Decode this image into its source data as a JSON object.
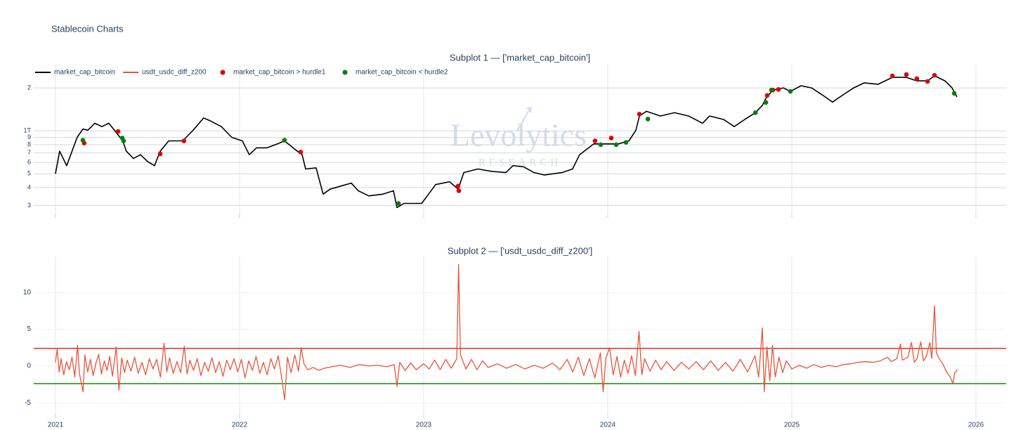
{
  "title": "Stablecoin Charts",
  "watermark": {
    "text": "Levolytics",
    "subtext": "RESEARCH"
  },
  "chart_data": [
    {
      "type": "line",
      "title": "Subplot 1 — ['market_cap_bitcoin']",
      "log_y": true,
      "grid": true,
      "xlim": [
        2020.882,
        2026.164
      ],
      "xticks": [
        2021,
        2022,
        2023,
        2024,
        2025,
        2026
      ],
      "ylim": [
        0.26,
        2.91
      ],
      "yticks": [
        {
          "value": 0.3,
          "label": "3"
        },
        {
          "value": 0.4,
          "label": "4"
        },
        {
          "value": 0.5,
          "label": "5"
        },
        {
          "value": 0.6,
          "label": "6"
        },
        {
          "value": 0.7,
          "label": "7"
        },
        {
          "value": 0.8,
          "label": "8"
        },
        {
          "value": 0.9,
          "label": "9"
        },
        {
          "value": 1,
          "label": "1T"
        },
        2
      ],
      "x": [
        2021.0,
        2021.023,
        2021.061,
        2021.118,
        2021.149,
        2021.176,
        2021.214,
        2021.252,
        2021.29,
        2021.328,
        2021.366,
        2021.385,
        2021.424,
        2021.462,
        2021.5,
        2021.538,
        2021.569,
        2021.615,
        2021.691,
        2021.748,
        2021.805,
        2021.844,
        2021.901,
        2021.958,
        2022.015,
        2022.053,
        2022.092,
        2022.149,
        2022.206,
        2022.244,
        2022.302,
        2022.34,
        2022.359,
        2022.416,
        2022.454,
        2022.492,
        2022.55,
        2022.607,
        2022.645,
        2022.702,
        2022.779,
        2022.836,
        2022.855,
        2022.893,
        2022.989,
        2023.027,
        2023.065,
        2023.141,
        2023.187,
        2023.218,
        2023.294,
        2023.37,
        2023.447,
        2023.485,
        2023.542,
        2023.599,
        2023.656,
        2023.752,
        2023.809,
        2023.847,
        2023.924,
        2024.0,
        2024.057,
        2024.115,
        2024.153,
        2024.172,
        2024.21,
        2024.286,
        2024.363,
        2024.439,
        2024.515,
        2024.553,
        2024.63,
        2024.687,
        2024.744,
        2024.802,
        2024.84,
        2024.859,
        2024.897,
        2024.954,
        2024.992,
        2025.05,
        2025.107,
        2025.164,
        2025.221,
        2025.279,
        2025.336,
        2025.393,
        2025.469,
        2025.546,
        2025.622,
        2025.679,
        2025.737,
        2025.775,
        2025.832,
        2025.87,
        2025.897
      ],
      "series": [
        {
          "name": "market_cap_bitcoin",
          "color": "#000000",
          "type": "line",
          "values": [
            0.5,
            0.72,
            0.57,
            0.9,
            1.03,
            1.01,
            1.13,
            1.07,
            1.13,
            0.98,
            0.85,
            0.72,
            0.64,
            0.68,
            0.61,
            0.57,
            0.72,
            0.85,
            0.85,
            1.01,
            1.23,
            1.17,
            1.07,
            0.9,
            0.85,
            0.68,
            0.76,
            0.76,
            0.81,
            0.85,
            0.74,
            0.68,
            0.54,
            0.55,
            0.36,
            0.39,
            0.41,
            0.43,
            0.38,
            0.35,
            0.36,
            0.38,
            0.29,
            0.31,
            0.31,
            0.36,
            0.42,
            0.44,
            0.39,
            0.51,
            0.54,
            0.52,
            0.51,
            0.57,
            0.56,
            0.51,
            0.49,
            0.51,
            0.54,
            0.68,
            0.81,
            0.81,
            0.81,
            0.85,
            1.01,
            1.27,
            1.37,
            1.27,
            1.34,
            1.27,
            1.13,
            1.27,
            1.2,
            1.07,
            1.2,
            1.34,
            1.51,
            1.69,
            1.93,
            2.0,
            1.89,
            2.07,
            2.0,
            1.79,
            1.59,
            1.79,
            2.0,
            2.17,
            2.12,
            2.37,
            2.37,
            2.24,
            2.24,
            2.43,
            2.24,
            2.0,
            1.73
          ]
        },
        {
          "name": "market_cap_bitcoin > hurdle1",
          "color": "#e00000",
          "type": "scatter",
          "x": [
            2021.156,
            2021.34,
            2021.569,
            2021.698,
            2022.332,
            2023.187,
            2023.191,
            2023.931,
            2024.019,
            2024.172,
            2024.866,
            2024.897,
            2024.927,
            2025.546,
            2025.622,
            2025.679,
            2025.737,
            2025.775
          ],
          "values": [
            0.82,
            0.99,
            0.69,
            0.85,
            0.71,
            0.41,
            0.38,
            0.85,
            0.89,
            1.31,
            1.77,
            1.93,
            1.95,
            2.43,
            2.48,
            2.32,
            2.22,
            2.45
          ]
        },
        {
          "name": "market_cap_bitcoin < hurdle2",
          "color": "#008000",
          "type": "scatter",
          "x": [
            2021.149,
            2021.363,
            2021.37,
            2022.244,
            2022.863,
            2023.962,
            2024.046,
            2024.099,
            2024.218,
            2024.802,
            2024.859,
            2024.889,
            2024.992,
            2025.882
          ],
          "values": [
            0.86,
            0.89,
            0.85,
            0.86,
            0.31,
            0.8,
            0.8,
            0.83,
            1.21,
            1.34,
            1.58,
            1.93,
            1.89,
            1.83
          ]
        }
      ]
    },
    {
      "type": "line",
      "title": "Subplot 2 — ['usdt_usdc_diff_z200']",
      "grid": true,
      "xlim": [
        2020.882,
        2026.164
      ],
      "xticks": [
        2021,
        2022,
        2023,
        2024,
        2025,
        2026
      ],
      "ylim": [
        -6.6,
        14.9
      ],
      "yticks": [
        -5,
        0,
        5,
        10
      ],
      "hlines": [
        {
          "value": 2.4,
          "color": "#e0301e"
        },
        {
          "value": -2.4,
          "color": "#118811"
        }
      ],
      "x": [
        2021.0,
        2021.01,
        2021.02,
        2021.03,
        2021.045,
        2021.06,
        2021.075,
        2021.09,
        2021.105,
        2021.12,
        2021.13,
        2021.15,
        2021.16,
        2021.175,
        2021.19,
        2021.205,
        2021.22,
        2021.235,
        2021.25,
        2021.265,
        2021.28,
        2021.295,
        2021.31,
        2021.33,
        2021.345,
        2021.36,
        2021.375,
        2021.39,
        2021.41,
        2021.43,
        2021.45,
        2021.47,
        2021.49,
        2021.51,
        2021.53,
        2021.55,
        2021.57,
        2021.59,
        2021.605,
        2021.62,
        2021.64,
        2021.66,
        2021.68,
        2021.7,
        2021.715,
        2021.73,
        2021.75,
        2021.77,
        2021.79,
        2021.81,
        2021.83,
        2021.85,
        2021.87,
        2021.89,
        2021.91,
        2021.93,
        2021.95,
        2021.97,
        2021.99,
        2022.01,
        2022.03,
        2022.05,
        2022.07,
        2022.09,
        2022.11,
        2022.13,
        2022.15,
        2022.17,
        2022.19,
        2022.21,
        2022.23,
        2022.245,
        2022.26,
        2022.28,
        2022.3,
        2022.32,
        2022.335,
        2022.35,
        2022.37,
        2022.4,
        2022.43,
        2022.46,
        2022.5,
        2022.55,
        2022.6,
        2022.65,
        2022.7,
        2022.75,
        2022.8,
        2022.84,
        2022.855,
        2022.87,
        2022.9,
        2022.93,
        2022.96,
        2023.0,
        2023.03,
        2023.06,
        2023.09,
        2023.12,
        2023.15,
        2023.18,
        2023.19,
        2023.2,
        2023.23,
        2023.26,
        2023.29,
        2023.32,
        2023.35,
        2023.4,
        2023.45,
        2023.5,
        2023.55,
        2023.6,
        2023.65,
        2023.7,
        2023.74,
        2023.78,
        2023.81,
        2023.84,
        2023.87,
        2023.9,
        2023.93,
        2023.96,
        2023.975,
        2023.99,
        2024.01,
        2024.03,
        2024.05,
        2024.07,
        2024.09,
        2024.11,
        2024.13,
        2024.15,
        2024.17,
        2024.185,
        2024.2,
        2024.23,
        2024.26,
        2024.29,
        2024.32,
        2024.36,
        2024.4,
        2024.44,
        2024.48,
        2024.52,
        2024.56,
        2024.6,
        2024.64,
        2024.68,
        2024.72,
        2024.76,
        2024.8,
        2024.82,
        2024.84,
        2024.85,
        2024.865,
        2024.88,
        2024.895,
        2024.91,
        2024.93,
        2024.95,
        2024.97,
        2025.0,
        2025.04,
        2025.08,
        2025.12,
        2025.16,
        2025.2,
        2025.24,
        2025.28,
        2025.32,
        2025.36,
        2025.4,
        2025.44,
        2025.48,
        2025.52,
        2025.54,
        2025.57,
        2025.59,
        2025.6,
        2025.63,
        2025.65,
        2025.665,
        2025.68,
        2025.7,
        2025.715,
        2025.73,
        2025.75,
        2025.76,
        2025.775,
        2025.785,
        2025.8,
        2025.82,
        2025.84,
        2025.86,
        2025.875,
        2025.885,
        2025.9
      ],
      "series": [
        {
          "name": "usdt_usdc_diff_z200",
          "color": "#e8553a",
          "type": "line",
          "values": [
            0.5,
            2.3,
            -0.8,
            1.0,
            -1.2,
            0.6,
            -0.5,
            1.2,
            -1.5,
            2.8,
            -1.0,
            -3.5,
            1.5,
            -0.8,
            0.9,
            -1.3,
            0.4,
            1.6,
            -1.1,
            0.7,
            -0.6,
            1.3,
            -1.4,
            2.6,
            -3.3,
            1.1,
            -0.9,
            0.8,
            -0.7,
            1.2,
            -1.0,
            0.5,
            -1.2,
            1.0,
            -0.4,
            0.9,
            -1.5,
            3.1,
            -0.8,
            1.1,
            -1.0,
            0.6,
            -0.9,
            2.7,
            -1.1,
            0.8,
            -0.6,
            1.0,
            -1.3,
            0.5,
            -0.7,
            1.1,
            -0.9,
            0.6,
            -1.4,
            0.8,
            -0.5,
            1.0,
            -0.8,
            0.9,
            -1.6,
            0.7,
            -0.6,
            1.3,
            -1.0,
            0.5,
            -1.2,
            1.0,
            -0.4,
            1.4,
            -1.8,
            -4.6,
            1.2,
            -0.9,
            1.5,
            -0.7,
            2.5,
            0.3,
            -0.5,
            -0.2,
            -0.6,
            -0.3,
            -0.1,
            0.1,
            -0.2,
            0.2,
            0.0,
            0.1,
            -0.1,
            0.2,
            -2.8,
            0.5,
            -0.6,
            0.4,
            -0.5,
            0.3,
            -0.4,
            0.8,
            -0.5,
            0.9,
            -0.3,
            1.0,
            13.8,
            1.5,
            -0.4,
            0.9,
            -0.5,
            0.7,
            -0.2,
            0.3,
            -0.3,
            0.2,
            -0.4,
            0.1,
            -0.3,
            0.4,
            -0.5,
            0.9,
            -0.8,
            1.2,
            -1.3,
            1.0,
            -1.6,
            1.8,
            -3.5,
            1.1,
            2.5,
            -1.2,
            1.3,
            -1.5,
            0.8,
            -1.0,
            1.4,
            -1.3,
            4.7,
            -1.2,
            1.0,
            -0.7,
            0.8,
            -0.5,
            0.6,
            -0.6,
            0.5,
            -0.4,
            0.6,
            -0.5,
            0.7,
            -0.6,
            0.5,
            -0.7,
            0.9,
            -0.8,
            1.4,
            -1.5,
            5.2,
            -3.5,
            2.6,
            -2.0,
            2.8,
            -1.5,
            1.2,
            -0.9,
            0.7,
            -0.4,
            0.1,
            -0.3,
            0.2,
            -0.2,
            0.1,
            -0.1,
            0.2,
            0.3,
            0.5,
            0.6,
            0.5,
            0.7,
            1.2,
            0.6,
            1.0,
            3.0,
            0.8,
            1.2,
            3.2,
            0.5,
            1.0,
            3.3,
            0.7,
            1.3,
            3.2,
            1.0,
            8.2,
            1.8,
            1.0,
            0.3,
            -0.8,
            -1.5,
            -2.4,
            -0.9,
            -0.5
          ]
        }
      ]
    }
  ]
}
